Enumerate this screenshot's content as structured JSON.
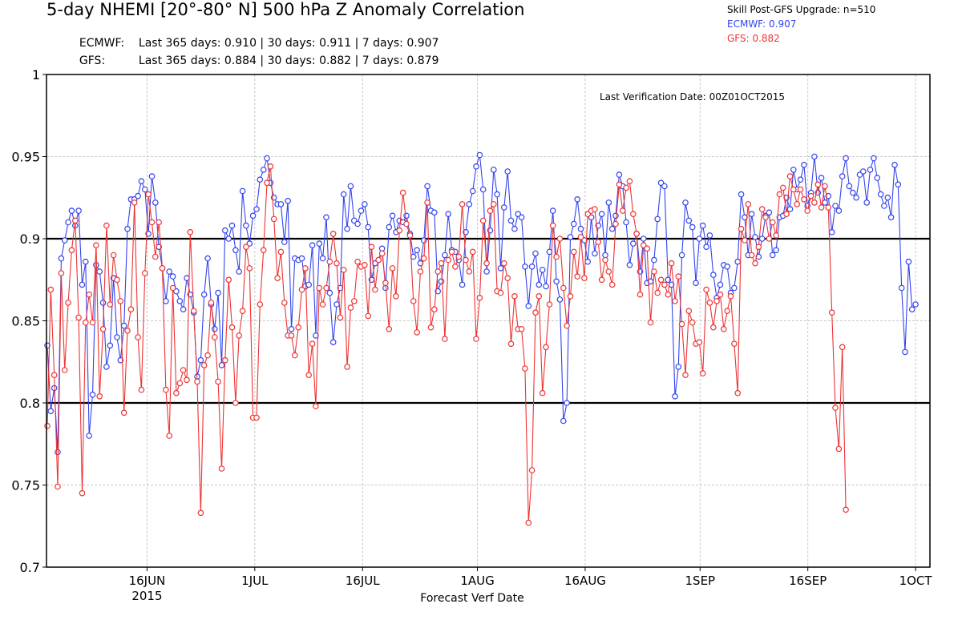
{
  "header": {
    "title": "5-day NHEMI [20°-80° N] 500 hPa Z Anomaly Correlation",
    "stats": [
      {
        "model": "ECMWF:",
        "text": "Last 365 days: 0.910 | 30 days: 0.911 | 7 days: 0.907"
      },
      {
        "model": "GFS:",
        "text": "Last 365 days: 0.884 | 30 days: 0.882 | 7 days: 0.879"
      }
    ]
  },
  "legend": {
    "title": "Skill Post-GFS Upgrade: n=510",
    "entries": [
      {
        "label": "ECMWF: 0.907",
        "color": "#3344ee"
      },
      {
        "label": "GFS: 0.882",
        "color": "#ee3333"
      }
    ]
  },
  "chart_data": {
    "type": "line",
    "title": "5-day NHEMI [20°-80° N] 500 hPa Z Anomaly Correlation",
    "xlabel": "Forecast Verf Date",
    "ylabel": "",
    "annotation": "Last Verification Date: 00Z01OCT2015",
    "x_range": [
      "2015-06-02",
      "2015-10-03"
    ],
    "ylim": [
      0.7,
      1.0
    ],
    "yticks": [
      0.7,
      0.75,
      0.8,
      0.85,
      0.9,
      0.95,
      1
    ],
    "ytick_labels": [
      "0.7",
      "0.75",
      "0.8",
      "0.85",
      "0.9",
      "0.95",
      "1"
    ],
    "xticks": [
      {
        "date": "2015-06-16",
        "label": "16JUN"
      },
      {
        "date": "2015-07-01",
        "label": "1JUL"
      },
      {
        "date": "2015-07-16",
        "label": "16JUL"
      },
      {
        "date": "2015-08-01",
        "label": "1AUG"
      },
      {
        "date": "2015-08-16",
        "label": "16AUG"
      },
      {
        "date": "2015-09-01",
        "label": "1SEP"
      },
      {
        "date": "2015-09-16",
        "label": "16SEP"
      },
      {
        "date": "2015-10-01",
        "label": "1OCT"
      }
    ],
    "year_label": "2015",
    "reference_lines": [
      0.8,
      0.9
    ],
    "grid": true,
    "legend_position": "top-right",
    "series": [
      {
        "name": "ECMWF",
        "color": "#3344ee",
        "values": [
          0.835,
          0.795,
          0.809,
          0.77,
          0.888,
          0.899,
          0.91,
          0.917,
          0.908,
          0.917,
          0.872,
          0.886,
          0.78,
          0.805,
          0.884,
          0.88,
          0.861,
          0.822,
          0.835,
          0.876,
          0.84,
          0.826,
          0.847,
          0.906,
          0.924,
          0.924,
          0.926,
          0.935,
          0.93,
          0.903,
          0.938,
          0.922,
          0.895,
          0.882,
          0.862,
          0.88,
          0.877,
          0.868,
          0.862,
          0.857,
          0.876,
          0.866,
          0.855,
          0.816,
          0.826,
          0.866,
          0.888,
          0.86,
          0.845,
          0.867,
          0.823,
          0.905,
          0.9,
          0.908,
          0.893,
          0.88,
          0.929,
          0.908,
          0.897,
          0.914,
          0.918,
          0.936,
          0.942,
          0.949,
          0.934,
          0.925,
          0.921,
          0.921,
          0.898,
          0.923,
          0.845,
          0.888,
          0.887,
          0.888,
          0.871,
          0.872,
          0.896,
          0.841,
          0.897,
          0.888,
          0.913,
          0.867,
          0.837,
          0.86,
          0.87,
          0.927,
          0.906,
          0.932,
          0.911,
          0.909,
          0.917,
          0.921,
          0.907,
          0.875,
          0.885,
          0.887,
          0.894,
          0.87,
          0.907,
          0.914,
          0.904,
          0.911,
          0.91,
          0.914,
          0.903,
          0.889,
          0.893,
          0.885,
          0.899,
          0.932,
          0.917,
          0.916,
          0.868,
          0.874,
          0.89,
          0.915,
          0.893,
          0.892,
          0.887,
          0.872,
          0.904,
          0.921,
          0.929,
          0.944,
          0.951,
          0.93,
          0.88,
          0.905,
          0.942,
          0.927,
          0.882,
          0.919,
          0.941,
          0.911,
          0.906,
          0.915,
          0.913,
          0.883,
          0.859,
          0.883,
          0.891,
          0.872,
          0.881,
          0.871,
          0.892,
          0.917,
          0.874,
          0.863,
          0.789,
          0.8,
          0.901,
          0.909,
          0.924,
          0.906,
          0.899,
          0.886,
          0.913,
          0.891,
          0.908,
          0.915,
          0.89,
          0.922,
          0.906,
          0.914,
          0.939,
          0.932,
          0.91,
          0.884,
          0.897,
          0.903,
          0.88,
          0.9,
          0.873,
          0.874,
          0.887,
          0.912,
          0.934,
          0.932,
          0.875,
          0.872,
          0.804,
          0.822,
          0.89,
          0.922,
          0.911,
          0.907,
          0.873,
          0.9,
          0.908,
          0.895,
          0.902,
          0.878,
          0.864,
          0.872,
          0.884,
          0.883,
          0.867,
          0.87,
          0.886,
          0.927,
          0.913,
          0.89,
          0.915,
          0.901,
          0.889,
          0.9,
          0.914,
          0.916,
          0.89,
          0.893,
          0.913,
          0.914,
          0.925,
          0.918,
          0.942,
          0.93,
          0.936,
          0.945,
          0.92,
          0.928,
          0.95,
          0.928,
          0.937,
          0.922,
          0.926,
          0.904,
          0.92,
          0.917,
          0.938,
          0.949,
          0.932,
          0.928,
          0.925,
          0.939,
          0.941,
          0.922,
          0.942,
          0.949,
          0.937,
          0.927,
          0.92,
          0.925,
          0.913,
          0.945,
          0.933,
          0.87,
          0.831,
          0.886,
          0.857,
          0.86
        ]
      },
      {
        "name": "GFS",
        "color": "#ee3333",
        "values": [
          0.786,
          0.869,
          0.817,
          0.749,
          0.879,
          0.82,
          0.861,
          0.893,
          0.911,
          0.852,
          0.745,
          0.849,
          0.866,
          0.849,
          0.896,
          0.804,
          0.845,
          0.908,
          0.86,
          0.89,
          0.875,
          0.862,
          0.794,
          0.844,
          0.857,
          0.922,
          0.84,
          0.808,
          0.879,
          0.927,
          0.91,
          0.889,
          0.91,
          0.882,
          0.808,
          0.78,
          0.87,
          0.806,
          0.812,
          0.82,
          0.814,
          0.904,
          0.856,
          0.813,
          0.733,
          0.823,
          0.829,
          0.861,
          0.84,
          0.813,
          0.76,
          0.826,
          0.875,
          0.846,
          0.8,
          0.841,
          0.856,
          0.895,
          0.882,
          0.791,
          0.791,
          0.86,
          0.893,
          0.934,
          0.944,
          0.912,
          0.876,
          0.892,
          0.861,
          0.841,
          0.841,
          0.829,
          0.846,
          0.869,
          0.882,
          0.817,
          0.836,
          0.798,
          0.87,
          0.86,
          0.87,
          0.886,
          0.903,
          0.885,
          0.852,
          0.881,
          0.822,
          0.858,
          0.862,
          0.886,
          0.883,
          0.884,
          0.853,
          0.895,
          0.869,
          0.887,
          0.891,
          0.873,
          0.845,
          0.882,
          0.865,
          0.905,
          0.928,
          0.909,
          0.902,
          0.862,
          0.843,
          0.88,
          0.888,
          0.922,
          0.846,
          0.857,
          0.88,
          0.885,
          0.839,
          0.887,
          0.892,
          0.883,
          0.889,
          0.921,
          0.887,
          0.88,
          0.892,
          0.839,
          0.864,
          0.911,
          0.885,
          0.917,
          0.921,
          0.868,
          0.867,
          0.885,
          0.876,
          0.836,
          0.865,
          0.845,
          0.845,
          0.821,
          0.727,
          0.759,
          0.855,
          0.865,
          0.806,
          0.834,
          0.86,
          0.908,
          0.889,
          0.9,
          0.87,
          0.847,
          0.865,
          0.892,
          0.877,
          0.901,
          0.876,
          0.915,
          0.917,
          0.918,
          0.898,
          0.875,
          0.887,
          0.88,
          0.872,
          0.909,
          0.933,
          0.917,
          0.931,
          0.935,
          0.915,
          0.903,
          0.866,
          0.896,
          0.894,
          0.849,
          0.88,
          0.867,
          0.875,
          0.872,
          0.866,
          0.885,
          0.862,
          0.877,
          0.848,
          0.817,
          0.856,
          0.849,
          0.836,
          0.837,
          0.818,
          0.869,
          0.861,
          0.846,
          0.862,
          0.866,
          0.845,
          0.856,
          0.865,
          0.836,
          0.806,
          0.906,
          0.899,
          0.921,
          0.89,
          0.885,
          0.895,
          0.918,
          0.913,
          0.9,
          0.91,
          0.902,
          0.927,
          0.931,
          0.915,
          0.938,
          0.93,
          0.921,
          0.93,
          0.924,
          0.917,
          0.926,
          0.922,
          0.933,
          0.919,
          0.932,
          0.919,
          0.855,
          0.797,
          0.772,
          0.834,
          0.735
        ]
      }
    ]
  }
}
